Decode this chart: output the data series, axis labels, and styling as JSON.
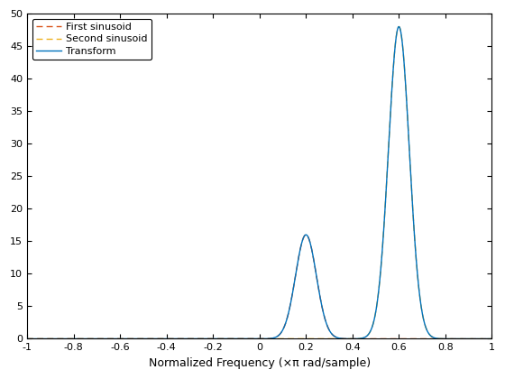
{
  "title": "",
  "xlabel": "Normalized Frequency (×π rad/sample)",
  "xlim": [
    -1,
    1
  ],
  "ylim": [
    0,
    50
  ],
  "xticks": [
    -1,
    -0.8,
    -0.6,
    -0.4,
    -0.2,
    0,
    0.2,
    0.4,
    0.6,
    0.8,
    1
  ],
  "xtick_labels": [
    "-1",
    "-0.8",
    "-0.6",
    "-0.4",
    "-0.2",
    "0",
    "0.2",
    "0.4",
    "0.6",
    "0.8",
    "1"
  ],
  "yticks": [
    0,
    5,
    10,
    15,
    20,
    25,
    30,
    35,
    40,
    45,
    50
  ],
  "freq1": 0.2,
  "freq2": 0.6,
  "amp1": 16.0,
  "amp2": 48.0,
  "sigma1": 0.045,
  "sigma2": 0.045,
  "transform_color": "#0072BD",
  "sinusoid1_color": "#D95319",
  "sinusoid2_color": "#EDB120",
  "transform_label": "Transform",
  "sinusoid1_label": "First sinusoid",
  "sinusoid2_label": "Second sinusoid",
  "legend_loc": "upper left",
  "background_color": "#ffffff",
  "grid": false,
  "figwidth": 5.6,
  "figheight": 4.2,
  "dpi": 100
}
